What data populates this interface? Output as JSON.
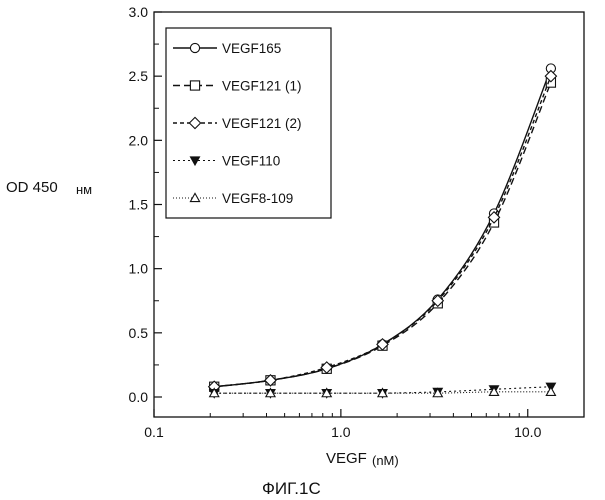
{
  "chart_data": {
    "type": "line",
    "xscale": "log",
    "xlabel": "VEGF",
    "xlabel_unit": "(nM)",
    "ylabel": "OD 450",
    "ylabel_unit": "нм",
    "caption": "ФИГ.1С",
    "xlim": [
      0.1,
      20
    ],
    "ylim": [
      0.0,
      3.0
    ],
    "xticks": [
      {
        "value": 0.1,
        "label": "0.1"
      },
      {
        "value": 1.0,
        "label": "1.0"
      },
      {
        "value": 10.0,
        "label": "10.0"
      }
    ],
    "yticks": [
      {
        "value": 0.0,
        "label": "0.0"
      },
      {
        "value": 0.5,
        "label": "0.5"
      },
      {
        "value": 1.0,
        "label": "1.0"
      },
      {
        "value": 1.5,
        "label": "1.5"
      },
      {
        "value": 2.0,
        "label": "2.0"
      },
      {
        "value": 2.5,
        "label": "2.5"
      },
      {
        "value": 3.0,
        "label": "3.0"
      }
    ],
    "legend_position": "top-left",
    "x": [
      0.21,
      0.42,
      0.84,
      1.67,
      3.3,
      6.6,
      13.3
    ],
    "series": [
      {
        "name": "VEGF165",
        "marker": "circle",
        "dash": "",
        "values": [
          0.08,
          0.13,
          0.22,
          0.41,
          0.76,
          1.43,
          2.56
        ]
      },
      {
        "name": "VEGF121 (1)",
        "marker": "square",
        "dash": "7,4",
        "values": [
          0.08,
          0.13,
          0.22,
          0.4,
          0.73,
          1.36,
          2.45
        ]
      },
      {
        "name": "VEGF121 (2)",
        "marker": "diamond",
        "dash": "4,3",
        "values": [
          0.08,
          0.13,
          0.23,
          0.41,
          0.75,
          1.4,
          2.5
        ]
      },
      {
        "name": "VEGF110",
        "marker": "triangle-down-filled",
        "dash": "2,3",
        "values": [
          0.03,
          0.03,
          0.03,
          0.03,
          0.04,
          0.06,
          0.08
        ]
      },
      {
        "name": "VEGF8-109",
        "marker": "triangle-up",
        "dash": "1,2",
        "values": [
          0.03,
          0.03,
          0.03,
          0.03,
          0.03,
          0.04,
          0.04
        ]
      }
    ]
  }
}
